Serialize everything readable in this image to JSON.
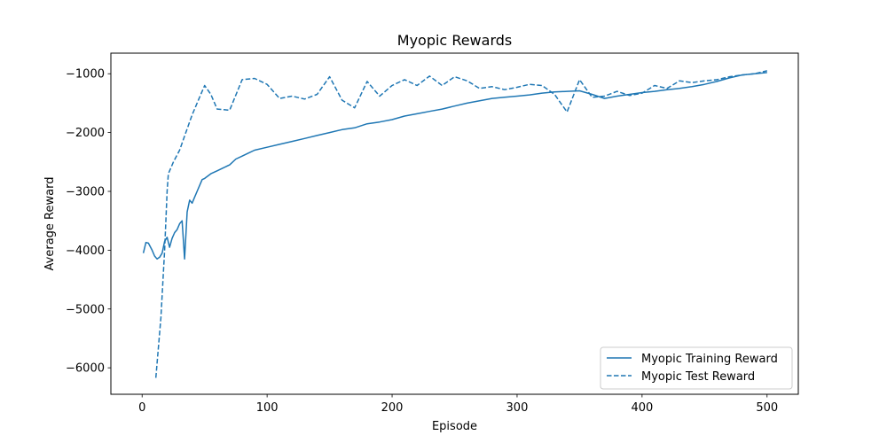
{
  "chart_data": {
    "type": "line",
    "title": "Myopic Rewards",
    "xlabel": "Episode",
    "ylabel": "Average Reward",
    "xlim": [
      -25,
      525
    ],
    "ylim": [
      -6450,
      -650
    ],
    "xticks": [
      0,
      100,
      200,
      300,
      400,
      500
    ],
    "yticks": [
      -6000,
      -5000,
      -4000,
      -3000,
      -2000,
      -1000
    ],
    "grid": false,
    "legend_position": "lower right",
    "color": "#1f77b4",
    "series": [
      {
        "name": "Myopic Training Reward",
        "style": "solid",
        "points": [
          [
            1,
            -4050
          ],
          [
            3,
            -3870
          ],
          [
            5,
            -3880
          ],
          [
            8,
            -4000
          ],
          [
            10,
            -4100
          ],
          [
            12,
            -4150
          ],
          [
            14,
            -4120
          ],
          [
            16,
            -4050
          ],
          [
            18,
            -3850
          ],
          [
            20,
            -3780
          ],
          [
            22,
            -3950
          ],
          [
            24,
            -3800
          ],
          [
            26,
            -3700
          ],
          [
            28,
            -3650
          ],
          [
            30,
            -3550
          ],
          [
            32,
            -3500
          ],
          [
            34,
            -4150
          ],
          [
            36,
            -3350
          ],
          [
            38,
            -3150
          ],
          [
            40,
            -3200
          ],
          [
            42,
            -3100
          ],
          [
            44,
            -3000
          ],
          [
            46,
            -2900
          ],
          [
            48,
            -2800
          ],
          [
            50,
            -2780
          ],
          [
            55,
            -2700
          ],
          [
            60,
            -2650
          ],
          [
            65,
            -2600
          ],
          [
            70,
            -2550
          ],
          [
            75,
            -2450
          ],
          [
            80,
            -2400
          ],
          [
            85,
            -2350
          ],
          [
            90,
            -2300
          ],
          [
            100,
            -2250
          ],
          [
            110,
            -2200
          ],
          [
            120,
            -2150
          ],
          [
            130,
            -2100
          ],
          [
            140,
            -2050
          ],
          [
            150,
            -2000
          ],
          [
            160,
            -1950
          ],
          [
            170,
            -1920
          ],
          [
            180,
            -1850
          ],
          [
            190,
            -1820
          ],
          [
            200,
            -1780
          ],
          [
            210,
            -1720
          ],
          [
            220,
            -1680
          ],
          [
            230,
            -1640
          ],
          [
            240,
            -1600
          ],
          [
            250,
            -1550
          ],
          [
            260,
            -1500
          ],
          [
            270,
            -1460
          ],
          [
            280,
            -1420
          ],
          [
            290,
            -1400
          ],
          [
            300,
            -1380
          ],
          [
            310,
            -1360
          ],
          [
            320,
            -1330
          ],
          [
            330,
            -1310
          ],
          [
            340,
            -1300
          ],
          [
            350,
            -1290
          ],
          [
            360,
            -1350
          ],
          [
            370,
            -1420
          ],
          [
            380,
            -1380
          ],
          [
            390,
            -1350
          ],
          [
            400,
            -1320
          ],
          [
            410,
            -1300
          ],
          [
            420,
            -1270
          ],
          [
            430,
            -1250
          ],
          [
            440,
            -1220
          ],
          [
            450,
            -1180
          ],
          [
            460,
            -1130
          ],
          [
            470,
            -1070
          ],
          [
            480,
            -1020
          ],
          [
            490,
            -1000
          ],
          [
            500,
            -980
          ]
        ]
      },
      {
        "name": "Myopic Test Reward",
        "style": "dashed",
        "points": [
          [
            11,
            -6170
          ],
          [
            15,
            -5150
          ],
          [
            18,
            -4000
          ],
          [
            20,
            -3000
          ],
          [
            21,
            -2700
          ],
          [
            25,
            -2500
          ],
          [
            30,
            -2300
          ],
          [
            35,
            -2000
          ],
          [
            40,
            -1700
          ],
          [
            45,
            -1450
          ],
          [
            50,
            -1200
          ],
          [
            55,
            -1350
          ],
          [
            60,
            -1600
          ],
          [
            70,
            -1620
          ],
          [
            80,
            -1100
          ],
          [
            90,
            -1080
          ],
          [
            100,
            -1180
          ],
          [
            110,
            -1420
          ],
          [
            120,
            -1380
          ],
          [
            130,
            -1430
          ],
          [
            140,
            -1350
          ],
          [
            150,
            -1050
          ],
          [
            160,
            -1450
          ],
          [
            170,
            -1580
          ],
          [
            180,
            -1130
          ],
          [
            190,
            -1380
          ],
          [
            200,
            -1200
          ],
          [
            210,
            -1100
          ],
          [
            220,
            -1200
          ],
          [
            230,
            -1040
          ],
          [
            240,
            -1200
          ],
          [
            250,
            -1050
          ],
          [
            260,
            -1120
          ],
          [
            270,
            -1250
          ],
          [
            280,
            -1220
          ],
          [
            290,
            -1270
          ],
          [
            300,
            -1230
          ],
          [
            310,
            -1180
          ],
          [
            320,
            -1200
          ],
          [
            330,
            -1350
          ],
          [
            340,
            -1650
          ],
          [
            350,
            -1100
          ],
          [
            360,
            -1400
          ],
          [
            370,
            -1380
          ],
          [
            380,
            -1300
          ],
          [
            390,
            -1370
          ],
          [
            400,
            -1330
          ],
          [
            410,
            -1200
          ],
          [
            420,
            -1250
          ],
          [
            430,
            -1120
          ],
          [
            440,
            -1150
          ],
          [
            450,
            -1120
          ],
          [
            460,
            -1100
          ],
          [
            470,
            -1050
          ],
          [
            480,
            -1020
          ],
          [
            490,
            -1000
          ],
          [
            500,
            -950
          ]
        ]
      }
    ]
  }
}
